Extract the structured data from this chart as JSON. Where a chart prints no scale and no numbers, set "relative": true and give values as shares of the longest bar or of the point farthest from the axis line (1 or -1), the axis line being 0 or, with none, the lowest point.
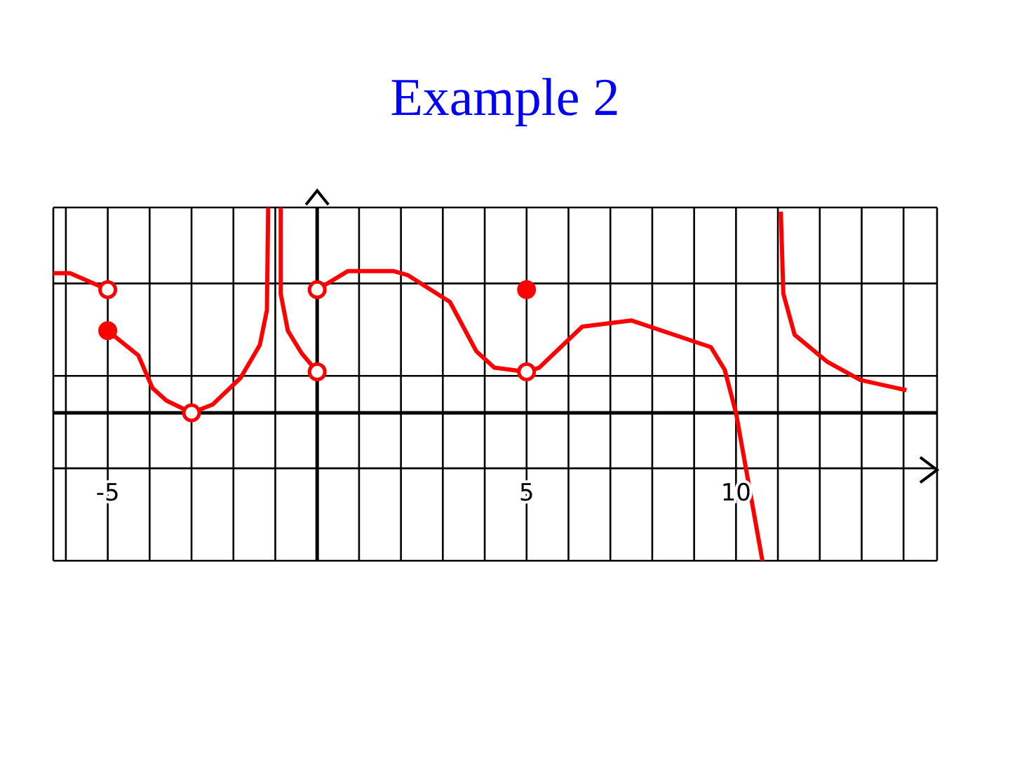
{
  "chart_data": {
    "type": "line",
    "title": "Example 2",
    "relative": true,
    "grid": true,
    "xlim": [
      -6.3,
      14.8
    ],
    "xticks": [
      {
        "value": -6,
        "label": null
      },
      -5,
      {
        "value": -4,
        "label": null
      },
      {
        "value": -3,
        "label": null
      },
      {
        "value": -2,
        "label": null
      },
      {
        "value": -1,
        "label": null
      },
      {
        "value": 0,
        "label": null
      },
      {
        "value": 1,
        "label": null
      },
      {
        "value": 2,
        "label": null
      },
      {
        "value": 3,
        "label": null
      },
      {
        "value": 4,
        "label": null
      },
      5,
      {
        "value": 6,
        "label": null
      },
      {
        "value": 7,
        "label": null
      },
      {
        "value": 8,
        "label": null
      },
      {
        "value": 9,
        "label": null
      },
      10,
      {
        "value": 11,
        "label": null
      },
      {
        "value": 12,
        "label": null
      },
      {
        "value": 13,
        "label": null
      },
      {
        "value": 14,
        "label": null
      }
    ],
    "series": [
      {
        "color": "#ff0000",
        "marker": "none",
        "x": [
          -6.3,
          -5.9,
          -5
        ],
        "values": [
          0.68,
          0.68,
          0.6
        ]
      },
      {
        "color": "#ff0000",
        "marker": "none",
        "x": [
          -5,
          -4.27,
          -3.93,
          -3.6,
          -3,
          -2.5,
          -1.83,
          -1.37,
          -1.2,
          -1.17
        ],
        "values": [
          0.4,
          0.28,
          0.12,
          0.06,
          0,
          0.04,
          0.17,
          0.33,
          0.5,
          1
        ]
      },
      {
        "color": "#ff0000",
        "marker": "none",
        "x": [
          -0.87,
          -0.87,
          -0.7,
          -0.37,
          0
        ],
        "values": [
          1,
          0.58,
          0.4,
          0.29,
          0.2
        ]
      },
      {
        "color": "#ff0000",
        "marker": "none",
        "x": [
          0,
          0.73,
          1.83,
          2.17,
          3.17,
          3.8,
          4.23,
          5,
          5.3,
          6.33,
          7.5,
          9.4,
          9.73,
          10,
          10.63
        ],
        "values": [
          0.6,
          0.69,
          0.69,
          0.67,
          0.54,
          0.3,
          0.22,
          0.2,
          0.22,
          0.42,
          0.45,
          0.32,
          0.21,
          0,
          -0.72
        ]
      },
      {
        "color": "#ff0000",
        "marker": "none",
        "x": [
          11.07,
          11.13,
          11.4,
          12.17,
          12.97,
          14.07
        ],
        "values": [
          0.98,
          0.58,
          0.38,
          0.25,
          0.16,
          0.11
        ]
      },
      {
        "type": "scatter",
        "color": "#ff0000",
        "marker": "circle",
        "colors": [
          "#ffffff",
          "#ffffff",
          "#ffffff",
          "#ffffff",
          "#ffffff"
        ],
        "x": [
          -5,
          -3,
          0,
          0,
          5
        ],
        "values": [
          0.6,
          0,
          0.6,
          0.2,
          0.2
        ]
      },
      {
        "type": "scatter",
        "color": "#ff0000",
        "marker": "circle",
        "x": [
          -5,
          5
        ],
        "values": [
          0.4,
          0.6
        ]
      }
    ]
  }
}
